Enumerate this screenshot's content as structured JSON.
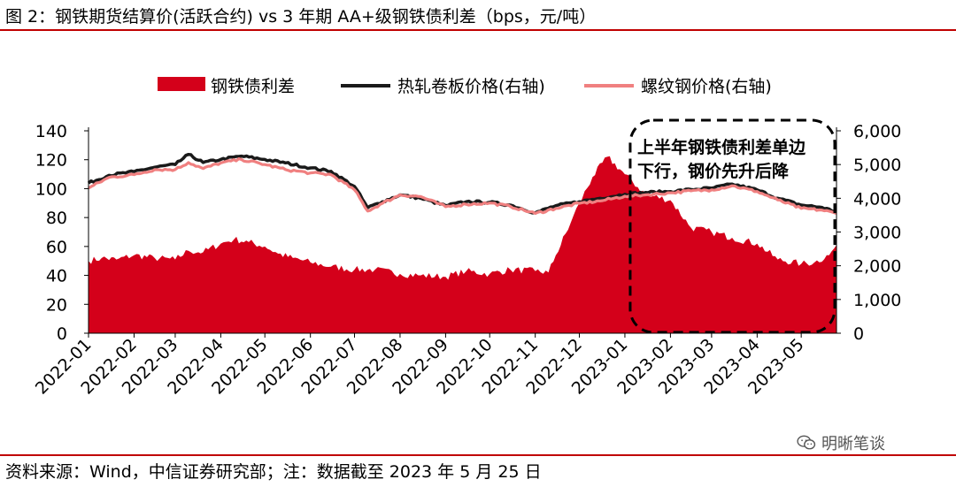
{
  "figure": {
    "title": "图 2：钢铁期货结算价(活跃合约) vs 3 年期 AA+级钢铁债利差（bps，元/吨）",
    "source": "资料来源：Wind，中信证券研究部；注：数据截至 2023 年 5 月 25 日",
    "watermark": "明晰笔谈",
    "colors": {
      "rule": "#c00000",
      "spread": "#d4001a",
      "hrc": "#1a1a1a",
      "rebar": "#f08080"
    }
  },
  "chart_data": {
    "type": "area",
    "x": [
      "2022-01",
      "2022-02",
      "2022-03",
      "2022-04",
      "2022-05",
      "2022-06",
      "2022-07",
      "2022-08",
      "2022-09",
      "2022-10",
      "2022-11",
      "2022-12",
      "2023-01",
      "2023-02",
      "2023-03",
      "2023-04",
      "2023-05"
    ],
    "xtick_labels": [
      "2022-01",
      "2022-02",
      "2022-03",
      "2022-04",
      "2022-05",
      "2022-06",
      "2022-07",
      "2022-08",
      "2022-09",
      "2022-10",
      "2022-11",
      "2022-12",
      "2023-01",
      "2023-02",
      "2023-03",
      "2023-04",
      "2023-05"
    ],
    "x_end": "2023-05-25",
    "left_axis": {
      "range": [
        0,
        140
      ],
      "ticks": [
        "0",
        "20",
        "40",
        "60",
        "80",
        "100",
        "120",
        "140"
      ]
    },
    "right_axis": {
      "range": [
        0,
        6000
      ],
      "ticks": [
        "0",
        "1,000",
        "2,000",
        "3,000",
        "4,000",
        "5,000",
        "6,000"
      ]
    },
    "legend": {
      "placement": "top"
    },
    "series": [
      {
        "name": "钢铁债利差",
        "kind": "area",
        "axis": "left",
        "points": [
          [
            "2022-01-01",
            50
          ],
          [
            "2022-01-10",
            52
          ],
          [
            "2022-01-20",
            51
          ],
          [
            "2022-02-01",
            54
          ],
          [
            "2022-02-15",
            52
          ],
          [
            "2022-03-01",
            51
          ],
          [
            "2022-03-10",
            57
          ],
          [
            "2022-03-20",
            56
          ],
          [
            "2022-04-01",
            62
          ],
          [
            "2022-04-10",
            65
          ],
          [
            "2022-04-20",
            63
          ],
          [
            "2022-05-01",
            60
          ],
          [
            "2022-05-10",
            55
          ],
          [
            "2022-05-20",
            52
          ],
          [
            "2022-06-01",
            49
          ],
          [
            "2022-06-15",
            46
          ],
          [
            "2022-07-01",
            44
          ],
          [
            "2022-07-15",
            44
          ],
          [
            "2022-08-01",
            41
          ],
          [
            "2022-08-15",
            40
          ],
          [
            "2022-09-01",
            39
          ],
          [
            "2022-09-15",
            43
          ],
          [
            "2022-10-01",
            41
          ],
          [
            "2022-10-15",
            44
          ],
          [
            "2022-11-01",
            43
          ],
          [
            "2022-11-10",
            42
          ],
          [
            "2022-11-15",
            54
          ],
          [
            "2022-11-25",
            76
          ],
          [
            "2022-12-01",
            90
          ],
          [
            "2022-12-10",
            108
          ],
          [
            "2022-12-20",
            122
          ],
          [
            "2023-01-01",
            110
          ],
          [
            "2023-01-15",
            96
          ],
          [
            "2023-02-01",
            92
          ],
          [
            "2023-02-15",
            73
          ],
          [
            "2023-03-01",
            70
          ],
          [
            "2023-03-15",
            66
          ],
          [
            "2023-04-01",
            62
          ],
          [
            "2023-04-15",
            51
          ],
          [
            "2023-05-01",
            48
          ],
          [
            "2023-05-10",
            49
          ],
          [
            "2023-05-20",
            54
          ],
          [
            "2023-05-25",
            61
          ]
        ]
      },
      {
        "name": "热轧卷板价格(右轴)",
        "kind": "line",
        "axis": "right",
        "points": [
          [
            "2022-01-01",
            4450
          ],
          [
            "2022-01-15",
            4680
          ],
          [
            "2022-02-01",
            4790
          ],
          [
            "2022-02-15",
            4920
          ],
          [
            "2022-03-01",
            5000
          ],
          [
            "2022-03-10",
            5300
          ],
          [
            "2022-03-20",
            5060
          ],
          [
            "2022-04-01",
            5150
          ],
          [
            "2022-04-15",
            5250
          ],
          [
            "2022-05-01",
            5150
          ],
          [
            "2022-05-15",
            5050
          ],
          [
            "2022-06-01",
            4900
          ],
          [
            "2022-06-15",
            4800
          ],
          [
            "2022-07-01",
            4350
          ],
          [
            "2022-07-10",
            3720
          ],
          [
            "2022-07-20",
            3900
          ],
          [
            "2022-08-01",
            4100
          ],
          [
            "2022-08-15",
            4000
          ],
          [
            "2022-09-01",
            3780
          ],
          [
            "2022-09-15",
            3900
          ],
          [
            "2022-10-01",
            3880
          ],
          [
            "2022-10-15",
            3800
          ],
          [
            "2022-11-01",
            3570
          ],
          [
            "2022-11-15",
            3780
          ],
          [
            "2022-12-01",
            3900
          ],
          [
            "2022-12-15",
            4000
          ],
          [
            "2023-01-01",
            4120
          ],
          [
            "2023-01-15",
            4170
          ],
          [
            "2023-02-01",
            4200
          ],
          [
            "2023-02-15",
            4260
          ],
          [
            "2023-03-01",
            4300
          ],
          [
            "2023-03-15",
            4420
          ],
          [
            "2023-04-01",
            4250
          ],
          [
            "2023-04-15",
            4000
          ],
          [
            "2023-05-01",
            3800
          ],
          [
            "2023-05-15",
            3730
          ],
          [
            "2023-05-25",
            3600
          ]
        ]
      },
      {
        "name": "螺纹钢价格(右轴)",
        "kind": "line",
        "axis": "right",
        "points": [
          [
            "2022-01-01",
            4300
          ],
          [
            "2022-01-15",
            4620
          ],
          [
            "2022-02-01",
            4700
          ],
          [
            "2022-02-15",
            4850
          ],
          [
            "2022-03-01",
            4850
          ],
          [
            "2022-03-10",
            5060
          ],
          [
            "2022-03-20",
            4880
          ],
          [
            "2022-04-01",
            5050
          ],
          [
            "2022-04-15",
            5150
          ],
          [
            "2022-05-01",
            5000
          ],
          [
            "2022-05-15",
            4850
          ],
          [
            "2022-06-01",
            4750
          ],
          [
            "2022-06-15",
            4700
          ],
          [
            "2022-07-01",
            4250
          ],
          [
            "2022-07-10",
            3620
          ],
          [
            "2022-07-20",
            3850
          ],
          [
            "2022-08-01",
            4100
          ],
          [
            "2022-08-15",
            4050
          ],
          [
            "2022-09-01",
            3750
          ],
          [
            "2022-09-15",
            3820
          ],
          [
            "2022-10-01",
            3860
          ],
          [
            "2022-10-15",
            3760
          ],
          [
            "2022-11-01",
            3550
          ],
          [
            "2022-11-15",
            3700
          ],
          [
            "2022-12-01",
            3850
          ],
          [
            "2022-12-15",
            3920
          ],
          [
            "2023-01-01",
            4060
          ],
          [
            "2023-01-15",
            4100
          ],
          [
            "2023-02-01",
            4160
          ],
          [
            "2023-02-15",
            4220
          ],
          [
            "2023-03-01",
            4250
          ],
          [
            "2023-03-15",
            4370
          ],
          [
            "2023-04-01",
            4200
          ],
          [
            "2023-04-15",
            3950
          ],
          [
            "2023-05-01",
            3700
          ],
          [
            "2023-05-15",
            3650
          ],
          [
            "2023-05-25",
            3550
          ]
        ]
      }
    ],
    "annotation": {
      "lines": [
        "上半年钢铁债利差单边",
        "下行，钢价先升后降"
      ],
      "start": "2023-01-01",
      "end": "2023-05-25"
    }
  }
}
